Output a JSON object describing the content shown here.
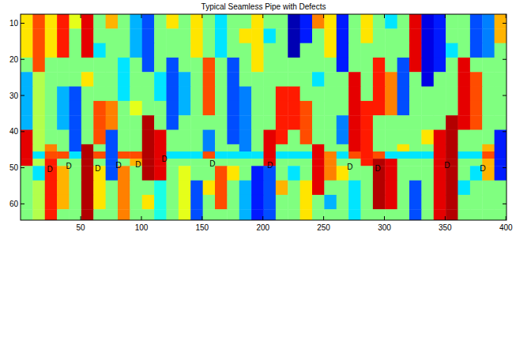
{
  "chart_data": {
    "type": "heatmap",
    "title": "Typical Seamless Pipe with Defects",
    "xlim": [
      0.5,
      400.5
    ],
    "ylim": [
      64.5,
      7.5
    ],
    "xticks": [
      50,
      100,
      150,
      200,
      250,
      300,
      350,
      400
    ],
    "yticks": [
      10,
      20,
      30,
      40,
      50,
      60
    ],
    "color_range": [
      -1,
      1
    ],
    "x_edges": [
      0.5,
      10.5,
      20.5,
      30.5,
      40.5,
      50.5,
      60.5,
      70.5,
      80.5,
      90.5,
      100.5,
      110.5,
      120.5,
      130.5,
      140.5,
      150.5,
      160.5,
      170.5,
      180.5,
      190.5,
      200.5,
      210.5,
      220.5,
      230.5,
      240.5,
      250.5,
      260.5,
      270.5,
      280.5,
      290.5,
      300.5,
      310.5,
      320.5,
      330.5,
      340.5,
      350.5,
      360.5,
      370.5,
      380.5,
      390.5,
      400.5
    ],
    "y_edges": [
      7.5,
      11.5,
      15.5,
      19.5,
      23.5,
      27.5,
      31.5,
      35.5,
      39.5,
      43.5,
      45.5,
      47.5,
      49.5,
      53.5,
      57.5,
      61.5,
      64.5
    ],
    "cells": [
      [
        0.3,
        0.6,
        0.3,
        0.7,
        0.2,
        0.8,
        0,
        0.4,
        0,
        -0.4,
        -0.6,
        0,
        0.3,
        0,
        0.3,
        0,
        -0.3,
        0,
        0,
        0.3,
        0,
        0,
        -0.9,
        -0.7,
        0.5,
        0.3,
        -0.7,
        0,
        0.3,
        0,
        -0.3,
        0,
        0.8,
        -0.8,
        -0.7,
        0,
        0,
        -0.6,
        -0.5,
        0.4
      ],
      [
        0.3,
        0.6,
        0.3,
        0.7,
        0,
        0.8,
        0,
        0,
        0,
        -0.4,
        -0.6,
        0,
        0,
        0,
        0.3,
        0,
        -0.3,
        0,
        0.3,
        0.3,
        -0.3,
        0,
        -0.9,
        -0.7,
        0,
        0.3,
        -0.7,
        0,
        0.3,
        0,
        0,
        0,
        0.8,
        -0.8,
        -0.7,
        0,
        0,
        -0.6,
        -0.5,
        0.4
      ],
      [
        0.3,
        0.6,
        0.3,
        0.7,
        0,
        0.8,
        -0.3,
        0,
        0,
        -0.4,
        -0.6,
        0,
        0,
        0,
        0.3,
        0,
        -0.3,
        0,
        0,
        0.3,
        0,
        0,
        -0.9,
        0,
        0,
        0.3,
        -0.7,
        0,
        0,
        0,
        0,
        0,
        0.8,
        -0.8,
        -0.7,
        -0.3,
        0,
        -0.6,
        -0.5,
        0
      ],
      [
        0,
        0.6,
        0,
        0,
        0,
        0,
        0,
        0,
        -0.3,
        0,
        -0.6,
        0,
        -0.6,
        0,
        0,
        0.6,
        0,
        -0.6,
        0,
        0.3,
        0,
        0,
        0,
        0,
        0,
        0,
        -0.7,
        0,
        0,
        0.7,
        0,
        -0.6,
        0.8,
        -0.8,
        -0.7,
        0,
        0.8,
        0,
        0,
        0
      ],
      [
        -0.4,
        0.1,
        0,
        0,
        0,
        0.3,
        0,
        0,
        -0.3,
        0,
        0,
        -0.3,
        -0.6,
        -0.4,
        0,
        0.6,
        0,
        -0.6,
        0,
        0,
        0,
        0,
        0,
        0,
        -0.3,
        0,
        0,
        0.8,
        0,
        0.7,
        0.5,
        -0.6,
        0,
        -0.8,
        0,
        0,
        0.8,
        0.6,
        0,
        0
      ],
      [
        -0.4,
        0.1,
        0,
        -0.4,
        -0.6,
        0,
        0,
        0,
        -0.3,
        0,
        0,
        -0.3,
        -0.6,
        -0.4,
        0,
        0.6,
        0,
        -0.6,
        -0.5,
        0,
        0,
        0.7,
        0.7,
        0,
        0,
        0,
        0,
        0.8,
        0,
        0.7,
        0.5,
        -0.6,
        0,
        0,
        0,
        0,
        0.8,
        0.6,
        0,
        0
      ],
      [
        -0.4,
        0.1,
        0,
        -0.4,
        -0.6,
        0,
        0.6,
        0.5,
        0,
        0.2,
        0,
        0,
        -0.6,
        -0.4,
        0,
        0.6,
        0,
        -0.6,
        -0.5,
        0,
        0,
        0.7,
        0.7,
        0.6,
        0,
        0,
        0,
        0.8,
        0.7,
        0.7,
        0.5,
        -0.6,
        0,
        0,
        0,
        0,
        0.8,
        0.6,
        0,
        0
      ],
      [
        -0.4,
        0.1,
        0,
        -0.4,
        -0.6,
        0,
        0.6,
        0.5,
        0,
        0,
        0.9,
        0,
        -0.6,
        0,
        0,
        0,
        0,
        -0.6,
        -0.5,
        0,
        0,
        0.7,
        0.7,
        0.6,
        0,
        0,
        -0.5,
        0.8,
        0.7,
        0,
        0,
        0,
        0,
        0,
        0,
        0.9,
        0.8,
        0.6,
        0,
        0
      ],
      [
        0.8,
        0.1,
        0,
        0,
        -0.6,
        0,
        0.6,
        -0.6,
        0,
        0,
        0.9,
        0.8,
        0,
        0,
        0,
        -0.5,
        0,
        -0.6,
        -0.5,
        0,
        0.8,
        0.7,
        0,
        0.6,
        0,
        0,
        -0.5,
        0.8,
        0.7,
        0,
        0,
        0,
        0,
        0.3,
        0.8,
        0.9,
        0,
        0,
        0,
        -0.7
      ],
      [
        0.8,
        0.1,
        0.5,
        0,
        -0.6,
        0.9,
        0,
        -0.6,
        0,
        0,
        0.9,
        0.8,
        0,
        0,
        0,
        -0.5,
        0,
        0,
        -0.5,
        0,
        0.8,
        0,
        0,
        0,
        0.8,
        0,
        0,
        0.8,
        0.7,
        0,
        0,
        0.3,
        0,
        0,
        0.8,
        0.9,
        0,
        0,
        0.4,
        -0.7
      ],
      [
        0.8,
        -0.3,
        0.6,
        0.6,
        -0.3,
        0.9,
        0.6,
        -0.6,
        0.6,
        0.6,
        0.9,
        0.8,
        -0.3,
        -0.3,
        -0.3,
        0.6,
        -0.3,
        -0.3,
        -0.3,
        -0.3,
        0.8,
        -0.3,
        -0.3,
        -0.3,
        0.8,
        0.5,
        -0.3,
        0.6,
        0.7,
        0.6,
        -0.3,
        -0.3,
        -0.3,
        -0.3,
        0.8,
        0.9,
        -0.3,
        -0.3,
        0.6,
        -0.7
      ],
      [
        0.8,
        0.1,
        0.7,
        0,
        0,
        0.9,
        0,
        -0.6,
        0,
        0.4,
        0.9,
        0.8,
        0,
        0,
        0,
        0,
        0,
        0,
        0,
        0,
        0.8,
        0,
        0,
        0,
        0.8,
        0.5,
        0,
        0,
        0.7,
        0.9,
        0.8,
        0,
        0,
        0,
        0.8,
        0.9,
        0,
        0,
        0.4,
        -0.7
      ],
      [
        0,
        -0.3,
        0.7,
        0.4,
        0,
        0.9,
        0.3,
        -0.6,
        0.5,
        0,
        0.9,
        0.8,
        0,
        0.2,
        0,
        0,
        0.6,
        0.3,
        0,
        -0.7,
        -0.6,
        0,
        -0.3,
        0,
        0.8,
        0.5,
        0.3,
        0,
        0,
        0.9,
        0.8,
        0,
        0,
        0,
        0.8,
        0.9,
        0,
        -0.3,
        0.4,
        -0.7
      ],
      [
        0,
        0.1,
        0.7,
        0.4,
        0,
        0.9,
        0.3,
        0,
        0.5,
        0,
        0,
        -0.2,
        0,
        0.2,
        -0.6,
        0.3,
        0.6,
        0,
        -0.4,
        -0.7,
        -0.6,
        0.4,
        0,
        0.3,
        0.8,
        0,
        0,
        -0.3,
        0,
        0.9,
        0.8,
        0,
        -0.6,
        0,
        0.8,
        0.9,
        -0.3,
        0,
        0,
        0
      ],
      [
        0,
        0.1,
        0.7,
        0.4,
        0,
        0.9,
        0.3,
        0,
        0.5,
        0,
        0.3,
        -0.2,
        0,
        0.2,
        -0.6,
        0,
        0.6,
        0,
        -0.4,
        -0.7,
        -0.6,
        0,
        0,
        0.3,
        0,
        -0.4,
        0,
        -0.3,
        0,
        0.9,
        0.8,
        0,
        -0.6,
        0,
        0.8,
        0.9,
        0,
        0,
        0,
        0
      ],
      [
        0,
        0.1,
        0.7,
        0,
        0,
        0.9,
        0,
        0,
        0.5,
        0,
        0,
        -0.2,
        0,
        0.2,
        -0.6,
        0,
        0,
        0,
        -0.4,
        -0.7,
        -0.6,
        0,
        0,
        0.3,
        0,
        0,
        0,
        -0.3,
        0,
        0,
        0,
        0,
        -0.6,
        0,
        0.8,
        0.9,
        0,
        0,
        0,
        0
      ]
    ],
    "annotations": [
      {
        "text": "D",
        "x": 24.6,
        "y": 50.4
      },
      {
        "text": "D",
        "x": 40.2,
        "y": 49.6
      },
      {
        "text": "D",
        "x": 64.2,
        "y": 50.2
      },
      {
        "text": "D",
        "x": 81.2,
        "y": 49.3
      },
      {
        "text": "D",
        "x": 97.4,
        "y": 49.1
      },
      {
        "text": "D",
        "x": 118.9,
        "y": 47.6
      },
      {
        "text": "D",
        "x": 158.5,
        "y": 48.9
      },
      {
        "text": "D",
        "x": 206,
        "y": 49.3
      },
      {
        "text": "D",
        "x": 271.7,
        "y": 49.8
      },
      {
        "text": "D",
        "x": 294.5,
        "y": 50.2
      },
      {
        "text": "D",
        "x": 351.7,
        "y": 49.3
      },
      {
        "text": "D",
        "x": 381,
        "y": 50.2
      }
    ]
  }
}
